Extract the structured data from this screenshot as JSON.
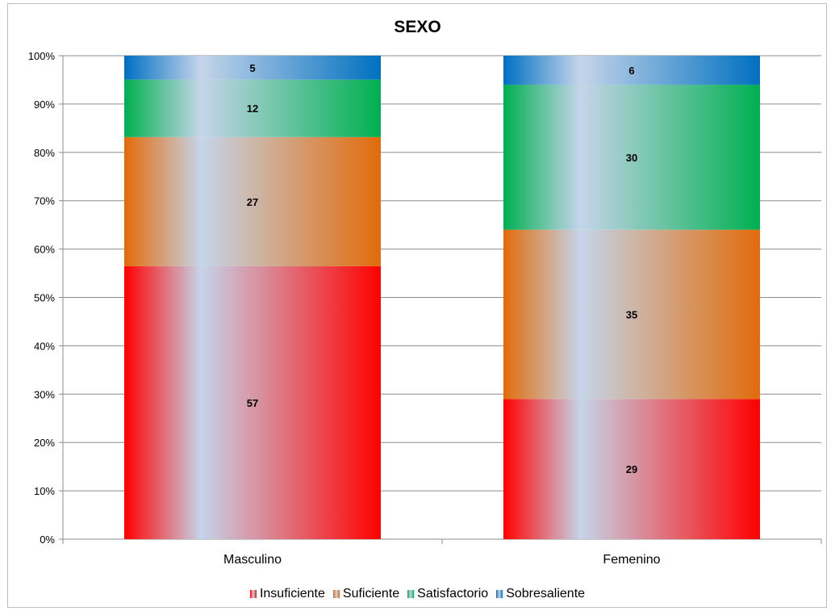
{
  "chart_data": {
    "type": "bar",
    "stacked": true,
    "percent_stacked": true,
    "title": "SEXO",
    "categories": [
      "Masculino",
      "Femenino"
    ],
    "series": [
      {
        "name": "Insuficiente",
        "values": [
          57,
          29
        ],
        "color": "#ff0000"
      },
      {
        "name": "Suficiente",
        "values": [
          27,
          35
        ],
        "color": "#e26b0a"
      },
      {
        "name": "Satisfactorio",
        "values": [
          12,
          30
        ],
        "color": "#00b050"
      },
      {
        "name": "Sobresaliente",
        "values": [
          5,
          6
        ],
        "color": "#0070c0"
      }
    ],
    "y_ticks": [
      "0%",
      "10%",
      "20%",
      "30%",
      "40%",
      "50%",
      "60%",
      "70%",
      "80%",
      "90%",
      "100%"
    ],
    "ylim": [
      0,
      100
    ],
    "grid": true,
    "legend_position": "bottom"
  }
}
